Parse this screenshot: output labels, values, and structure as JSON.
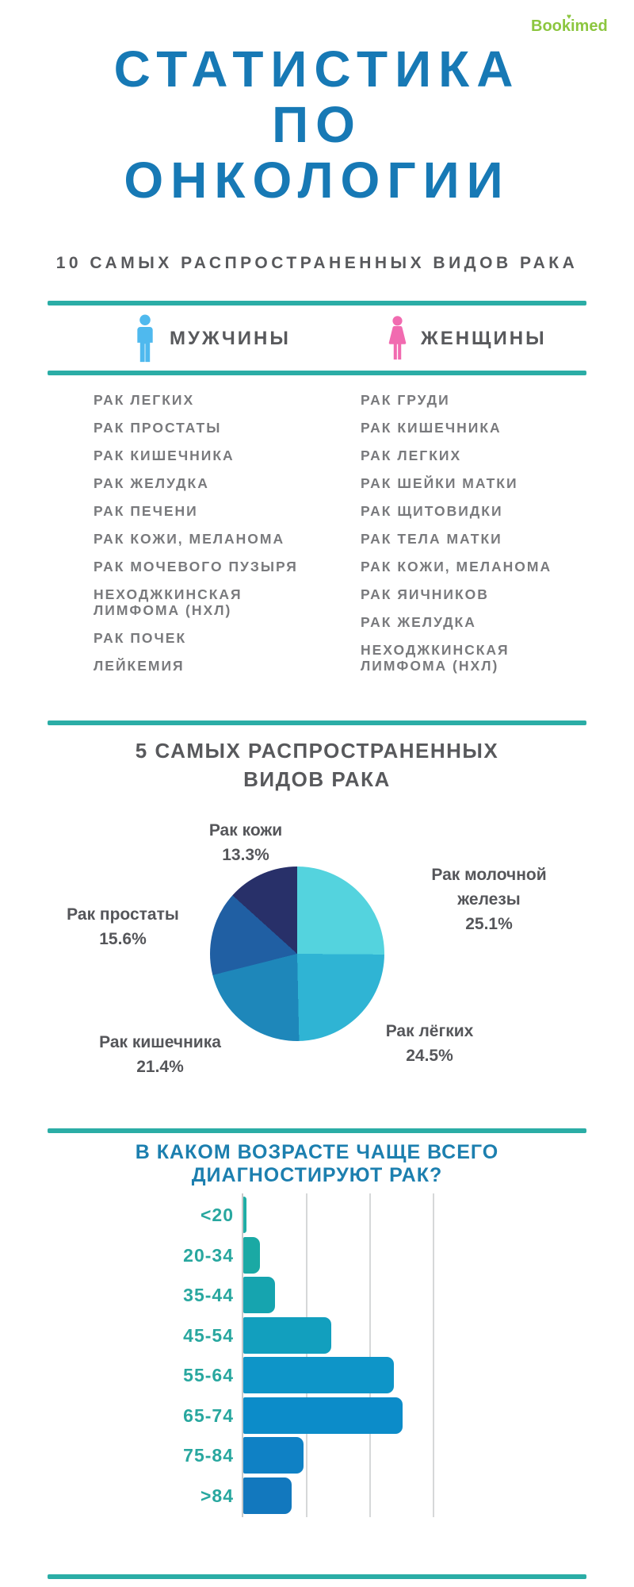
{
  "logo": {
    "text": "Bookimed",
    "heart": "♥",
    "color": "#8CC63F"
  },
  "header": {
    "title": "СТАТИСТИКА\nПО\nОНКОЛОГИИ",
    "subtitle": "10 САМЫХ РАСПРОСТРАНЕННЫХ ВИДОВ РАКА"
  },
  "top10": {
    "men": {
      "label": "МУЖЧИНЫ",
      "icon_color": "#4FB9EE",
      "items": [
        "РАК ЛЕГКИХ",
        "РАК ПРОСТАТЫ",
        "РАК КИШЕЧНИКА",
        "РАК ЖЕЛУДКА",
        "РАК ПЕЧЕНИ",
        "РАК КОЖИ, МЕЛАНОМА",
        "РАК МОЧЕВОГО ПУЗЫРЯ",
        "НЕХОДЖКИНСКАЯ\nЛИМФОМА (НХЛ)",
        "РАК ПОЧЕК",
        "ЛЕЙКЕМИЯ"
      ]
    },
    "women": {
      "label": "ЖЕНЩИНЫ",
      "icon_color": "#F16BB0",
      "items": [
        "РАК ГРУДИ",
        "РАК КИШЕЧНИКА",
        "РАК ЛЕГКИХ",
        "РАК ШЕЙКИ МАТКИ",
        "РАК ЩИТОВИДКИ",
        "РАК ТЕЛА МАТКИ",
        "РАК КОЖИ, МЕЛАНОМА",
        "РАК ЯИЧНИКОВ",
        "РАК ЖЕЛУДКА",
        "НЕХОДЖКИНСКАЯ\nЛИМФОМА (НХЛ)"
      ]
    }
  },
  "sections": {
    "pie_title": "5 САМЫХ РАСПРОСТРАНЕННЫХ\nВИДОВ РАКА",
    "age_title": "В КАКОМ ВОЗРАСТЕ ЧАЩЕ ВСЕГО\nДИАГНОСТИРУЮТ РАК?"
  },
  "chart_data": [
    {
      "type": "pie",
      "title": "5 САМЫХ РАСПРОСТРАНЕННЫХ ВИДОВ РАКА",
      "start": "12 o'clock, clockwise",
      "slices": [
        {
          "label": "Рак молочной железы",
          "value": 25.1,
          "color": "#54D3DE"
        },
        {
          "label": "Рак лёгких",
          "value": 24.5,
          "color": "#2FB4D4"
        },
        {
          "label": "Рак кишечника",
          "value": 21.4,
          "color": "#1E87BA"
        },
        {
          "label": "Рак простаты",
          "value": 15.6,
          "color": "#205FA3"
        },
        {
          "label": "Рак кожи",
          "value": 13.3,
          "color": "#283069"
        }
      ]
    },
    {
      "type": "bar",
      "orientation": "horizontal",
      "title": "В КАКОМ ВОЗРАСТЕ ЧАЩЕ ВСЕГО ДИАГНОСТИРУЮТ РАК?",
      "categories": [
        "<20",
        "20-34",
        "35-44",
        "45-54",
        "55-64",
        "65-74",
        "75-84",
        ">84"
      ],
      "values": [
        0.5,
        2.6,
        5.0,
        13.9,
        23.8,
        25.1,
        9.5,
        7.6
      ],
      "value_note": "estimated share of diagnoses, %",
      "xlim": [
        0,
        30
      ],
      "gridlines": [
        10,
        20,
        30
      ],
      "grid": true,
      "label_color": "#28A79F",
      "bar_colors": [
        "#1FADA5",
        "#1AA9A4",
        "#16A4AF",
        "#129FBE",
        "#0E95C8",
        "#0C8CC9",
        "#0F81C5",
        "#1278BE"
      ]
    }
  ]
}
